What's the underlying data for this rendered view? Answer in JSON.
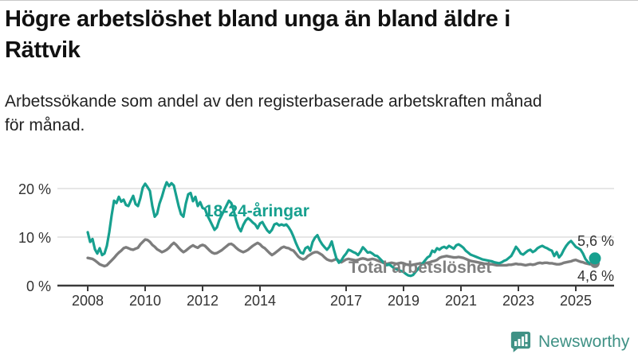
{
  "title_lines": [
    "Högre arbetslöshet bland unga än bland äldre i",
    "Rättvik"
  ],
  "subtitle_lines": [
    "Arbetssökande som andel av den registerbaserade arbetskraften månad",
    "för månad."
  ],
  "branding": {
    "logo_text": "Newsworthy"
  },
  "colors": {
    "youth": "#17a08f",
    "total": "#7d7d7d",
    "grid": "#dddddd",
    "axis": "#3a3a3a",
    "tick_text": "#333333",
    "logo": "#3f9185"
  },
  "chart_data": {
    "type": "line",
    "title": "Högre arbetslöshet bland unga än bland äldre i Rättvik",
    "subtitle": "Arbetssökande som andel av den registerbaserade arbetskraften månad för månad.",
    "unit": "%",
    "frequency": "monthly",
    "x_start": "2008-01",
    "x_end": "2025-09",
    "ylim": [
      0,
      22
    ],
    "grid": "horizontal",
    "legend_position": "inline-labels",
    "y_ticks": [
      {
        "label": "0 %",
        "value": 0
      },
      {
        "label": "10 %",
        "value": 10
      },
      {
        "label": "20 %",
        "value": 20
      }
    ],
    "x_ticks": [
      {
        "label": "2008",
        "year": 2008
      },
      {
        "label": "2010",
        "year": 2010
      },
      {
        "label": "2012",
        "year": 2012
      },
      {
        "label": "2014",
        "year": 2014
      },
      {
        "label": "2017",
        "year": 2017
      },
      {
        "label": "2019",
        "year": 2019
      },
      {
        "label": "2021",
        "year": 2021
      },
      {
        "label": "2023",
        "year": 2023
      },
      {
        "label": "2025",
        "year": 2025
      }
    ],
    "series": [
      {
        "name": "Total arbetslöshet",
        "color": "#7d7d7d",
        "end_label": "4,6 %",
        "end_value": 4.6,
        "values": [
          5.7,
          5.6,
          5.5,
          5.2,
          4.8,
          4.4,
          4.2,
          4.0,
          4.2,
          4.7,
          5.2,
          5.7,
          6.3,
          6.8,
          7.2,
          7.7,
          7.9,
          7.7,
          7.5,
          7.4,
          7.6,
          7.8,
          8.5,
          9.0,
          9.5,
          9.4,
          9.0,
          8.4,
          8.0,
          7.5,
          7.2,
          6.9,
          7.1,
          7.4,
          7.8,
          8.4,
          8.8,
          8.4,
          7.8,
          7.3,
          6.9,
          7.2,
          7.6,
          8.0,
          8.3,
          8.0,
          7.8,
          8.2,
          8.4,
          8.2,
          7.7,
          7.2,
          6.8,
          6.6,
          6.7,
          7.0,
          7.3,
          7.7,
          8.1,
          8.5,
          8.6,
          8.3,
          7.8,
          7.4,
          7.1,
          6.9,
          7.1,
          7.4,
          7.8,
          8.2,
          8.5,
          8.8,
          8.5,
          8.0,
          7.7,
          7.2,
          6.7,
          6.3,
          6.6,
          7.0,
          7.4,
          7.8,
          8.0,
          7.8,
          7.7,
          7.4,
          7.2,
          6.6,
          6.0,
          5.6,
          5.4,
          5.6,
          6.1,
          6.4,
          6.7,
          6.9,
          6.9,
          6.6,
          6.3,
          5.8,
          5.4,
          5.2,
          5.1,
          5.3,
          5.5,
          5.1,
          4.8,
          5.1,
          5.4,
          5.5,
          5.4,
          5.3,
          5.2,
          5.3,
          5.5,
          5.6,
          5.5,
          5.3,
          5.4,
          5.5,
          5.4,
          5.2,
          5.0,
          4.8,
          4.6,
          4.5,
          4.6,
          4.7,
          4.6,
          4.5,
          4.6,
          4.7,
          4.6,
          4.4,
          4.3,
          4.2,
          4.3,
          4.4,
          4.5,
          4.6,
          4.5,
          4.6,
          4.7,
          4.8,
          5.0,
          5.1,
          5.3,
          5.7,
          5.9,
          6.0,
          6.1,
          6.0,
          5.9,
          5.8,
          5.8,
          5.9,
          5.8,
          5.7,
          5.5,
          5.3,
          5.1,
          5.0,
          4.9,
          4.8,
          4.7,
          4.6,
          4.5,
          4.5,
          4.4,
          4.4,
          4.3,
          4.2,
          4.2,
          4.2,
          4.2,
          4.2,
          4.3,
          4.3,
          4.4,
          4.5,
          4.4,
          4.4,
          4.3,
          4.2,
          4.3,
          4.4,
          4.3,
          4.4,
          4.6,
          4.7,
          4.6,
          4.7,
          4.7,
          4.6,
          4.6,
          4.5,
          4.4,
          4.4,
          4.5,
          4.7,
          4.8,
          4.9,
          5.0,
          5.2,
          5.3,
          5.1,
          4.9,
          4.8,
          4.6,
          4.5,
          4.4,
          4.5,
          4.6
        ]
      },
      {
        "name": "18-24-åringar",
        "color": "#17a08f",
        "end_label": "5,6 %",
        "end_value": 5.6,
        "values": [
          11.0,
          9.0,
          9.6,
          7.5,
          6.6,
          7.7,
          6.3,
          6.6,
          8.2,
          11.0,
          14.5,
          17.5,
          17.0,
          18.3,
          17.3,
          17.7,
          16.6,
          16.4,
          17.5,
          18.5,
          16.8,
          16.4,
          18.0,
          20.2,
          21.0,
          20.3,
          19.5,
          16.4,
          14.2,
          14.8,
          16.9,
          18.3,
          20.0,
          21.3,
          20.5,
          21.1,
          20.6,
          18.5,
          16.4,
          14.7,
          14.2,
          16.9,
          18.8,
          19.1,
          17.4,
          18.3,
          16.4,
          17.2,
          16.0,
          15.8,
          14.5,
          13.5,
          12.5,
          11.5,
          12.0,
          13.5,
          14.5,
          15.5,
          16.5,
          17.5,
          17.0,
          15.5,
          13.5,
          12.0,
          11.2,
          12.5,
          13.4,
          13.9,
          13.5,
          13.0,
          12.6,
          11.8,
          12.8,
          13.1,
          12.2,
          11.4,
          10.9,
          11.5,
          12.6,
          12.8,
          12.4,
          12.6,
          12.4,
          12.6,
          12.0,
          11.2,
          10.1,
          8.8,
          7.7,
          6.8,
          6.6,
          7.7,
          8.0,
          7.2,
          9.0,
          9.9,
          10.4,
          9.3,
          8.5,
          7.9,
          7.4,
          8.0,
          9.1,
          7.2,
          5.5,
          4.7,
          5.2,
          6.0,
          6.6,
          7.4,
          7.2,
          6.9,
          6.7,
          6.3,
          7.0,
          7.9,
          7.4,
          6.8,
          6.9,
          6.6,
          6.2,
          6.1,
          5.6,
          5.1,
          4.6,
          4.2,
          4.4,
          4.0,
          3.6,
          3.4,
          3.2,
          3.0,
          2.8,
          2.4,
          2.1,
          2.0,
          2.2,
          2.8,
          3.4,
          4.0,
          4.6,
          5.2,
          5.8,
          6.1,
          7.2,
          6.9,
          7.7,
          7.4,
          7.8,
          8.0,
          7.7,
          8.2,
          7.9,
          7.6,
          8.3,
          8.5,
          8.2,
          7.8,
          7.2,
          6.8,
          6.4,
          6.2,
          6.0,
          5.8,
          5.6,
          5.4,
          5.3,
          5.2,
          5.1,
          5.0,
          4.8,
          4.7,
          4.6,
          4.8,
          5.1,
          5.3,
          5.7,
          6.1,
          7.0,
          8.0,
          7.4,
          6.6,
          6.4,
          6.8,
          7.2,
          7.4,
          6.9,
          7.2,
          7.7,
          8.0,
          8.2,
          7.9,
          7.7,
          7.4,
          7.2,
          6.1,
          6.9,
          5.8,
          6.4,
          7.4,
          8.2,
          8.8,
          9.2,
          8.6,
          8.0,
          7.7,
          7.4,
          6.6,
          5.5,
          4.9,
          4.5,
          4.7,
          5.6
        ]
      }
    ]
  }
}
